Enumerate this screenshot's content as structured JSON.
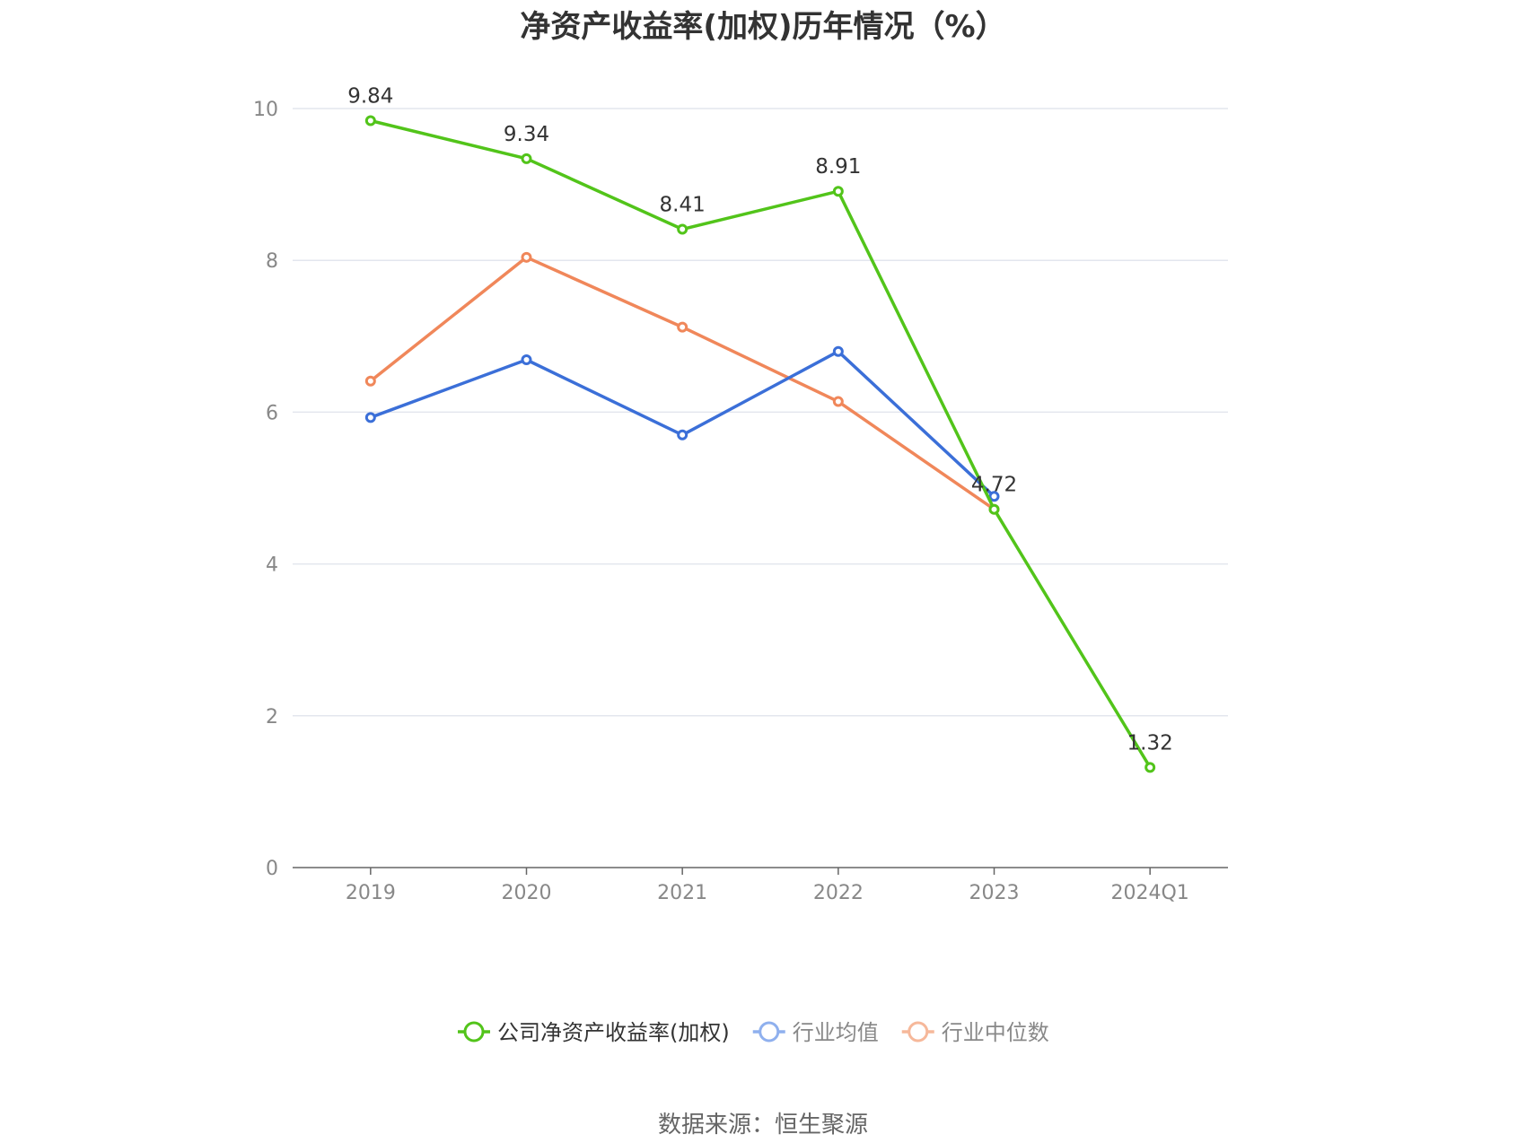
{
  "chart_data": {
    "type": "line",
    "title": "净资产收益率(加权)历年情况（%）",
    "categories": [
      "2019",
      "2020",
      "2021",
      "2022",
      "2023",
      "2024Q1"
    ],
    "ylim": [
      0,
      10
    ],
    "yticks": [
      0,
      2,
      4,
      6,
      8,
      10
    ],
    "grid": true,
    "legend_position": "bottom",
    "series": [
      {
        "name": "公司净资产收益率(加权)",
        "color": "#52c41a",
        "values": [
          9.84,
          9.34,
          8.41,
          8.91,
          4.72,
          1.32
        ],
        "labels": [
          "9.84",
          "9.34",
          "8.41",
          "8.91",
          "4.72",
          "1.32"
        ]
      },
      {
        "name": "行业均值",
        "color": "#3b6fd8",
        "legend_color": "#8fb0ee",
        "values": [
          5.93,
          6.69,
          5.7,
          6.8,
          4.89,
          null
        ]
      },
      {
        "name": "行业中位数",
        "color": "#f0875a",
        "legend_color": "#f6b89a",
        "values": [
          6.41,
          8.04,
          7.12,
          6.14,
          4.72,
          null
        ]
      }
    ]
  },
  "source": "数据来源：恒生聚源"
}
